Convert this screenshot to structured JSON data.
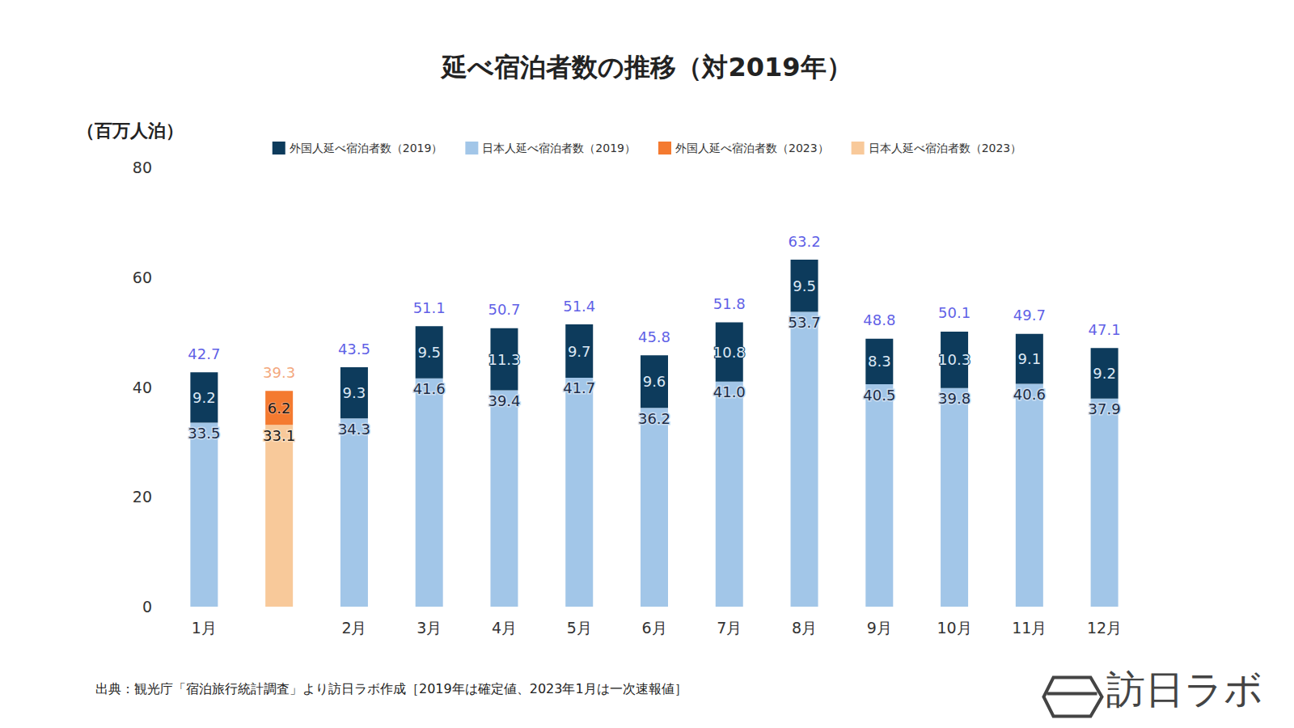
{
  "chart_data": {
    "type": "bar",
    "title": "延べ宿泊者数の推移（対2019年）",
    "y_label": "（百万人泊）",
    "categories": [
      "1月",
      null,
      "2月",
      "3月",
      "4月",
      "5月",
      "6月",
      "7月",
      "8月",
      "9月",
      "10月",
      "11月",
      "12月"
    ],
    "series": [
      {
        "name": "外国人延べ宿泊者数（2019）",
        "color": "#0d3b5c",
        "values": [
          9.2,
          null,
          9.3,
          9.5,
          11.3,
          9.7,
          9.6,
          10.8,
          9.5,
          8.3,
          10.3,
          9.1,
          9.2
        ],
        "value_labels": [
          "9.2",
          null,
          "9.3",
          "9.5",
          "11.3",
          "9.7",
          "9.6",
          "10.8",
          "9.5",
          "8.3",
          "10.3",
          "9.1",
          "9.2"
        ]
      },
      {
        "name": "日本人延べ宿泊者数（2019）",
        "color": "#a2c6e8",
        "values": [
          33.5,
          null,
          34.3,
          41.6,
          39.4,
          41.7,
          36.2,
          41.0,
          53.7,
          40.5,
          39.8,
          40.6,
          37.9
        ],
        "value_labels": [
          "33.5",
          null,
          "34.3",
          "41.6",
          "39.4",
          "41.7",
          "36.2",
          "41.0",
          "53.7",
          "40.5",
          "39.8",
          "40.6",
          "37.9"
        ]
      },
      {
        "name": "外国人延べ宿泊者数（2023）",
        "color": "#f47a30",
        "values": [
          null,
          6.2,
          null,
          null,
          null,
          null,
          null,
          null,
          null,
          null,
          null,
          null,
          null
        ],
        "value_labels": [
          null,
          "6.2",
          null,
          null,
          null,
          null,
          null,
          null,
          null,
          null,
          null,
          null,
          null
        ]
      },
      {
        "name": "日本人延べ宿泊者数（2023）",
        "color": "#f8c99a",
        "values": [
          null,
          33.1,
          null,
          null,
          null,
          null,
          null,
          null,
          null,
          null,
          null,
          null,
          null
        ],
        "value_labels": [
          null,
          "33.1",
          null,
          null,
          null,
          null,
          null,
          null,
          null,
          null,
          null,
          null,
          null
        ]
      }
    ],
    "totals": {
      "values": [
        42.7,
        39.3,
        43.5,
        51.1,
        50.7,
        51.4,
        45.8,
        51.8,
        63.2,
        48.8,
        50.1,
        49.7,
        47.1
      ],
      "colors": [
        "#3434e0",
        "#f0905a",
        "#3434e0",
        "#3434e0",
        "#3434e0",
        "#3434e0",
        "#3434e0",
        "#3434e0",
        "#3434e0",
        "#3434e0",
        "#3434e0",
        "#3434e0",
        "#3434e0"
      ]
    },
    "ylim": [
      0,
      80
    ],
    "yticks": [
      0,
      20,
      40,
      60,
      80
    ],
    "grid": false,
    "stacked": true,
    "data_labels": true,
    "legend": "top",
    "source": "出典：観光庁「宿泊旅行統計調査」より訪日ラボ作成［2019年は確定値、2023年1月は一次速報値］",
    "logo": "訪日ラボ"
  }
}
